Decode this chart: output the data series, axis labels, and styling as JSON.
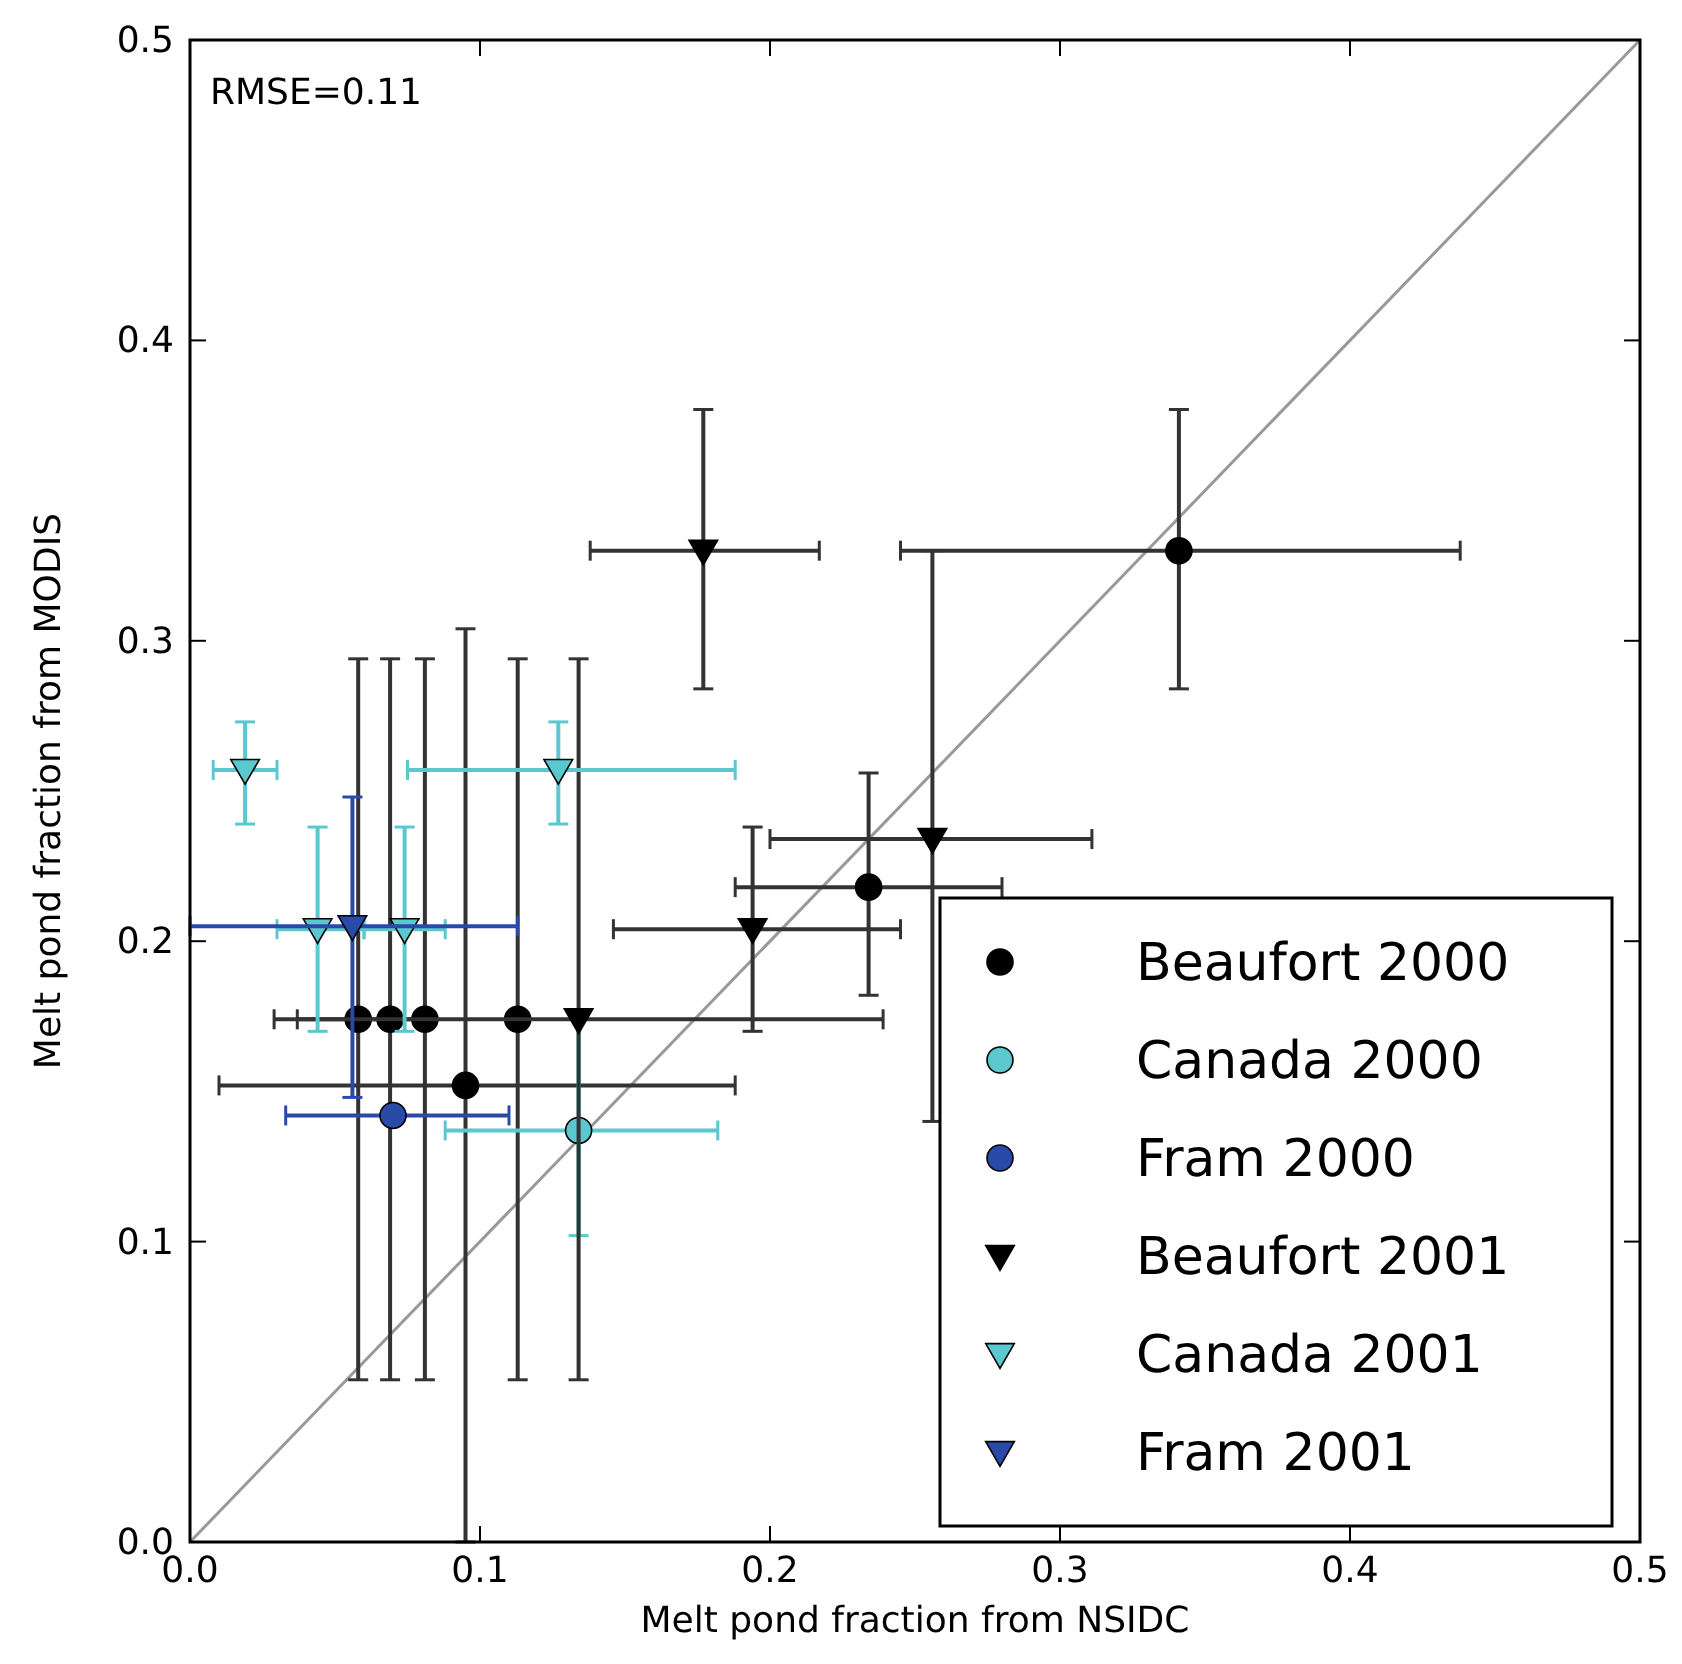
{
  "chart_data": {
    "type": "scatter",
    "xlabel": "Melt pond fraction from NSIDC",
    "ylabel": "Melt pond fraction from MODIS",
    "annotations": [
      "RMSE=0.11"
    ],
    "xlim": [
      0,
      0.5
    ],
    "ylim": [
      0,
      0.5
    ],
    "xticks": [
      {
        "value": 0,
        "label": "0.0"
      },
      {
        "value": 0.1,
        "label": "0.1"
      },
      {
        "value": 0.2,
        "label": "0.2"
      },
      {
        "value": 0.3,
        "label": "0.3"
      },
      {
        "value": 0.4,
        "label": "0.4"
      },
      {
        "value": 0.5,
        "label": "0.5"
      }
    ],
    "yticks": [
      {
        "value": 0,
        "label": "0.0"
      },
      {
        "value": 0.1,
        "label": "0.1"
      },
      {
        "value": 0.2,
        "label": "0.2"
      },
      {
        "value": 0.3,
        "label": "0.3"
      },
      {
        "value": 0.4,
        "label": "0.4"
      },
      {
        "value": 0.5,
        "label": "0.5"
      }
    ],
    "grid": false,
    "legend": "bottom right",
    "series": [
      {
        "type": "line",
        "color": "#999999",
        "x": [
          0,
          0.5
        ],
        "values": [
          0,
          0.5
        ]
      },
      {
        "name": "Beaufort 2000",
        "color": "#000000",
        "marker": "circle",
        "x": [
          0.058,
          0.069,
          0.081,
          0.113,
          0.095,
          0.234,
          0.341
        ],
        "values": [
          0.174,
          0.174,
          0.174,
          0.174,
          0.152,
          0.218,
          0.33
        ],
        "errors": [
          [
            0.054,
            0.294
          ],
          [
            0.054,
            0.294
          ],
          [
            0.054,
            0.294
          ],
          [
            0.054,
            0.294
          ],
          [
            0,
            0.304
          ],
          [
            0.182,
            0.256
          ],
          [
            0.284,
            0.377
          ]
        ],
        "xerrors": [
          [
            0.037,
            0.079
          ],
          null,
          null,
          null,
          [
            0.01,
            0.188
          ],
          [
            0.188,
            0.28
          ],
          [
            0.245,
            0.438
          ]
        ]
      },
      {
        "name": "Canada 2000",
        "color": "#5bc8d0",
        "marker": "circle",
        "x": [
          0.134
        ],
        "values": [
          0.137
        ],
        "errors": [
          [
            0.102,
            0.174
          ]
        ],
        "xerrors": [
          [
            0.088,
            0.182
          ]
        ]
      },
      {
        "name": "Fram 2000",
        "color": "#2a4aa8",
        "marker": "circle",
        "x": [
          0.07
        ],
        "values": [
          0.142
        ],
        "xerrors": [
          [
            0.033,
            0.11
          ]
        ]
      },
      {
        "name": "Beaufort 2001",
        "color": "#000000",
        "marker": "triangle",
        "x": [
          0.177,
          0.256,
          0.194,
          0.134
        ],
        "values": [
          0.33,
          0.234,
          0.204,
          0.174
        ],
        "errors": [
          [
            0.284,
            0.377
          ],
          [
            0.14,
            0.33
          ],
          [
            0.17,
            0.238
          ],
          [
            0.054,
            0.294
          ]
        ],
        "xerrors": [
          [
            0.138,
            0.217
          ],
          [
            0.2,
            0.311
          ],
          [
            0.146,
            0.245
          ],
          [
            0.029,
            0.239
          ]
        ]
      },
      {
        "name": "Canada 2001",
        "color": "#5bc8d0",
        "marker": "triangle",
        "x": [
          0.019,
          0.127,
          0.044,
          0.074
        ],
        "values": [
          0.257,
          0.257,
          0.204,
          0.204
        ],
        "errors": [
          [
            0.239,
            0.273
          ],
          [
            0.239,
            0.273
          ],
          [
            0.17,
            0.238
          ],
          [
            0.17,
            0.238
          ]
        ],
        "xerrors": [
          [
            0.008,
            0.03
          ],
          [
            0.075,
            0.188
          ],
          [
            0.03,
            0.06
          ],
          [
            0.06,
            0.088
          ]
        ]
      },
      {
        "name": "Fram 2001",
        "color": "#2a4aa8",
        "marker": "triangle",
        "x": [
          0.056
        ],
        "values": [
          0.205
        ],
        "errors": [
          [
            0.148,
            0.248
          ]
        ],
        "xerrors": [
          [
            0,
            0.113
          ]
        ]
      }
    ]
  }
}
